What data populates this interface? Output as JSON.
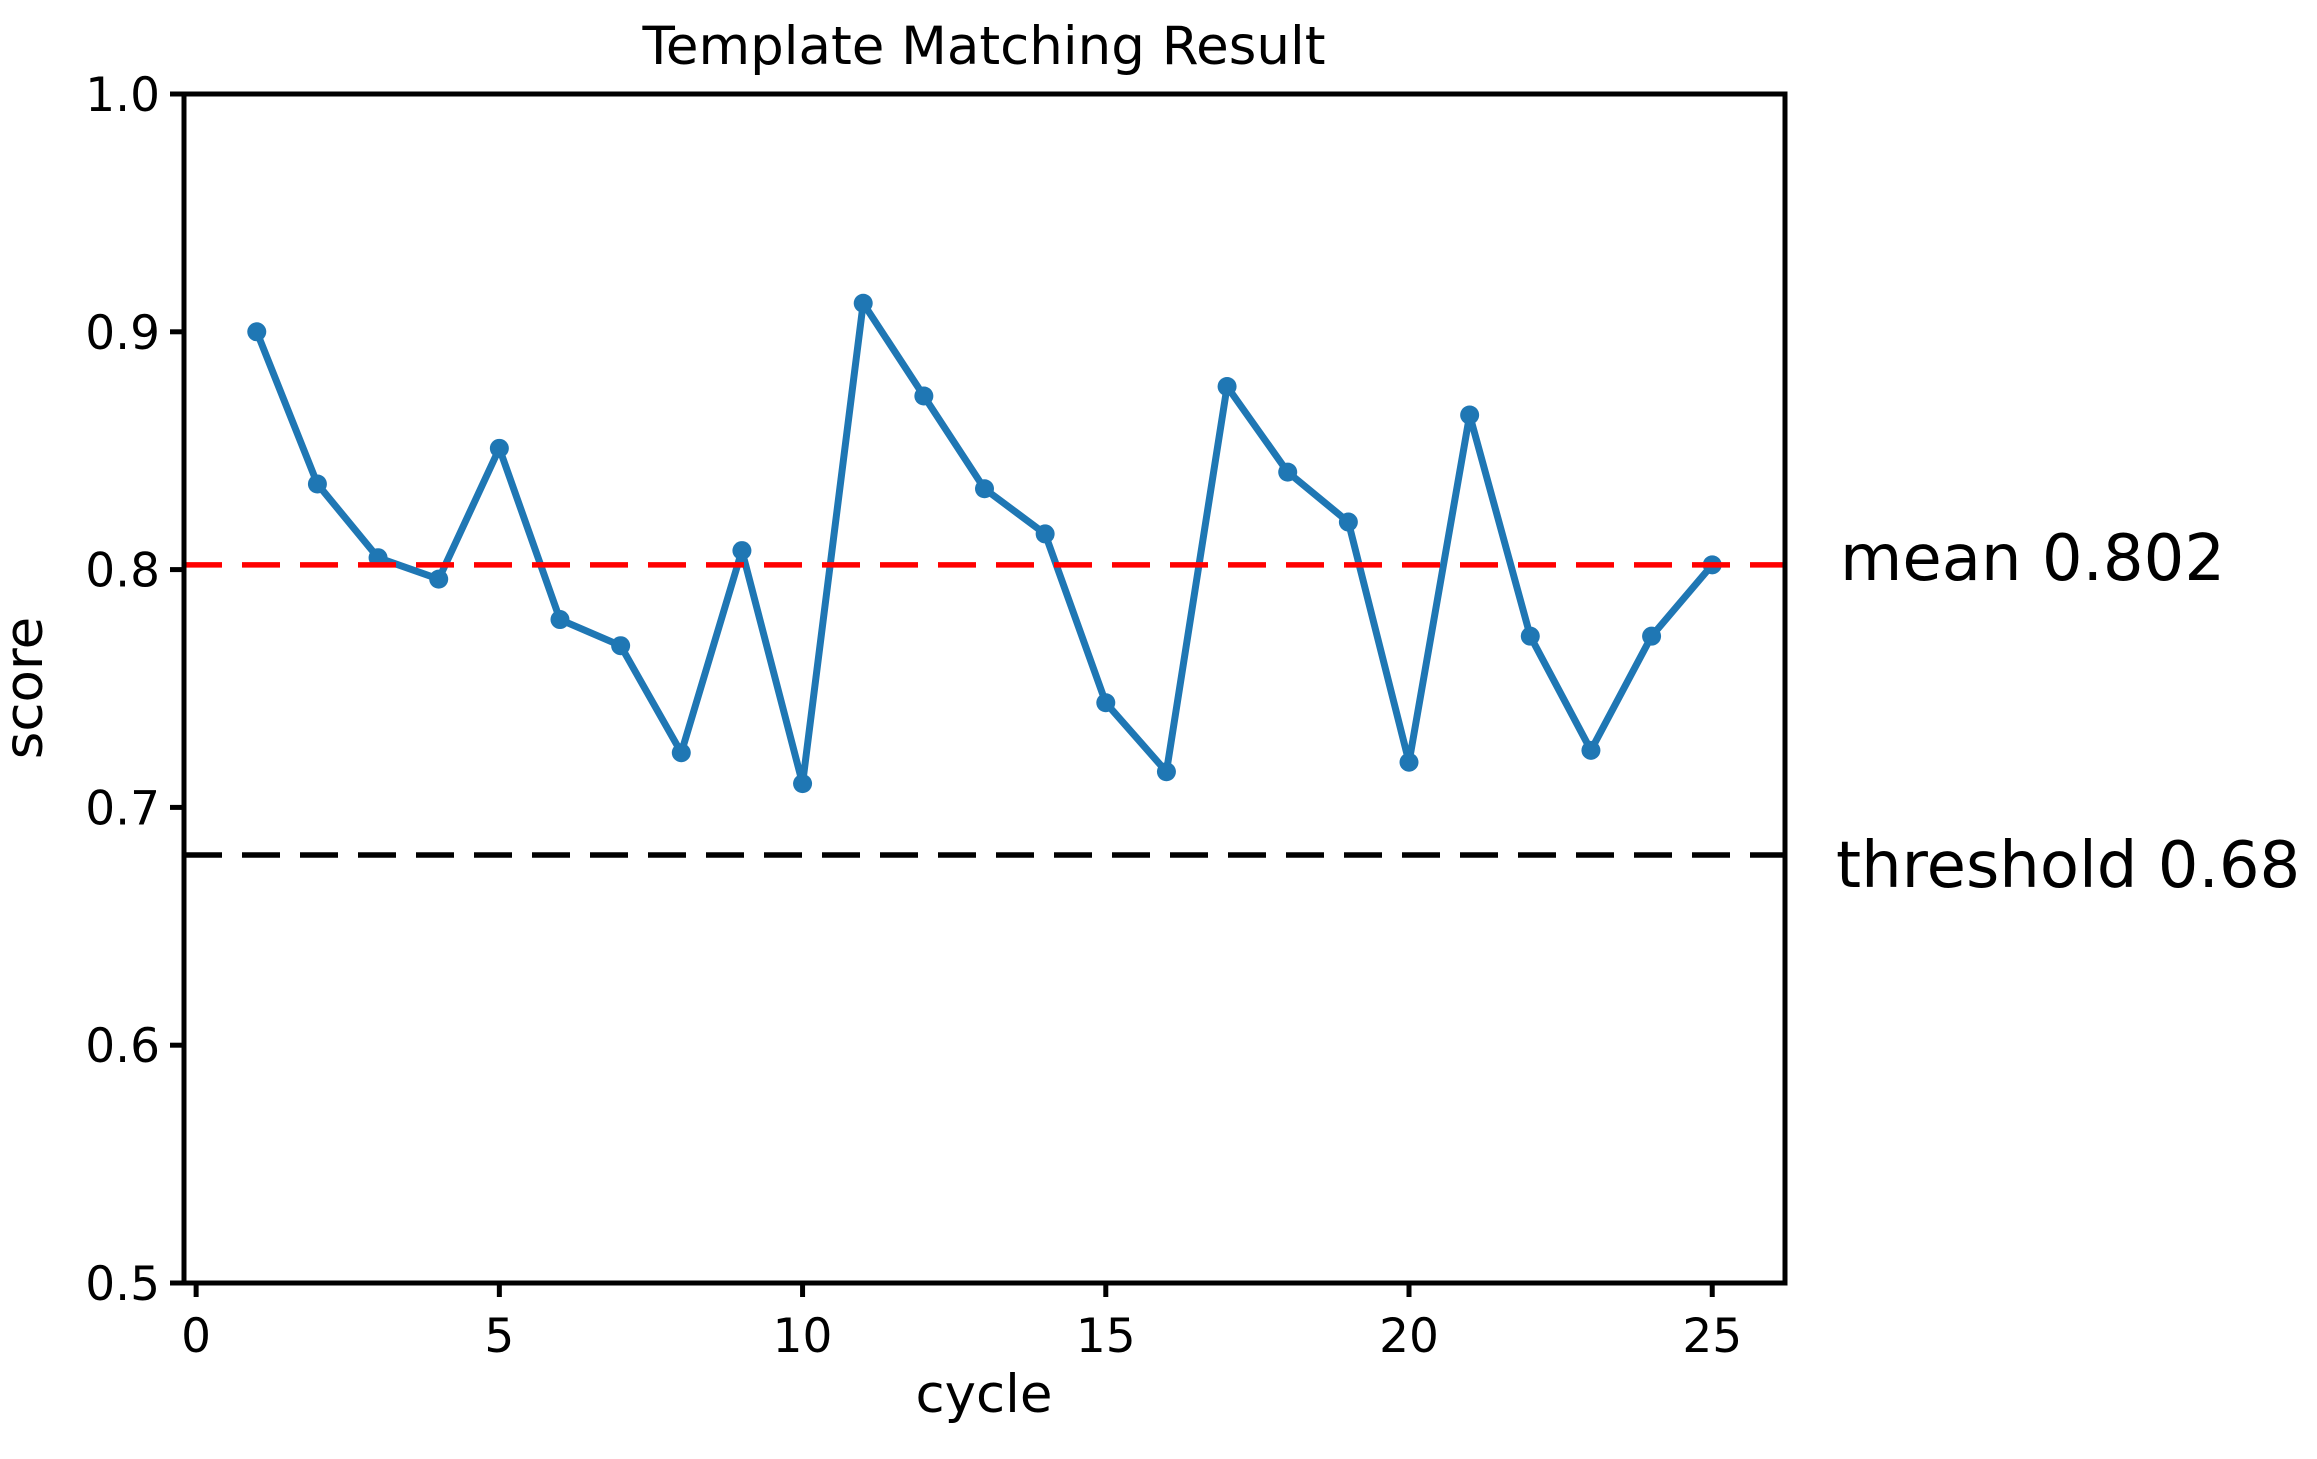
{
  "figure": {
    "background": "#ffffff"
  },
  "chart_data": {
    "type": "line",
    "title": "Template Matching Result",
    "xlabel": "cycle",
    "ylabel": "score",
    "x": [
      1,
      2,
      3,
      4,
      5,
      6,
      7,
      8,
      9,
      10,
      11,
      12,
      13,
      14,
      15,
      16,
      17,
      18,
      19,
      20,
      21,
      22,
      23,
      24,
      25
    ],
    "series": [
      {
        "name": "score",
        "color": "#1f77b4",
        "marker": "circle",
        "linestyle": "solid",
        "values": [
          0.9,
          0.836,
          0.805,
          0.796,
          0.851,
          0.779,
          0.768,
          0.723,
          0.808,
          0.71,
          0.912,
          0.873,
          0.834,
          0.815,
          0.744,
          0.715,
          0.877,
          0.841,
          0.82,
          0.719,
          0.865,
          0.772,
          0.724,
          0.772,
          0.802
        ]
      }
    ],
    "reference_lines": {
      "mean": {
        "label": "mean 0.802",
        "value": 0.802,
        "color": "#ff0000",
        "linestyle": "dashed"
      },
      "threshold": {
        "label": "threshold 0.68",
        "value": 0.68,
        "color": "#000000",
        "linestyle": "dashed"
      }
    },
    "xlim": [
      -0.2,
      26.2
    ],
    "ylim": [
      0.5,
      1.0
    ],
    "xticks": [
      0,
      5,
      10,
      15,
      20,
      25
    ],
    "xticklabels": [
      "0",
      "5",
      "10",
      "15",
      "20",
      "25"
    ],
    "yticks": [
      0.5,
      0.6,
      0.7,
      0.8,
      0.9,
      1.0
    ],
    "yticklabels": [
      "0.5",
      "0.6",
      "0.7",
      "0.8",
      "0.9",
      "1.0"
    ],
    "grid": false,
    "legend": "none"
  }
}
